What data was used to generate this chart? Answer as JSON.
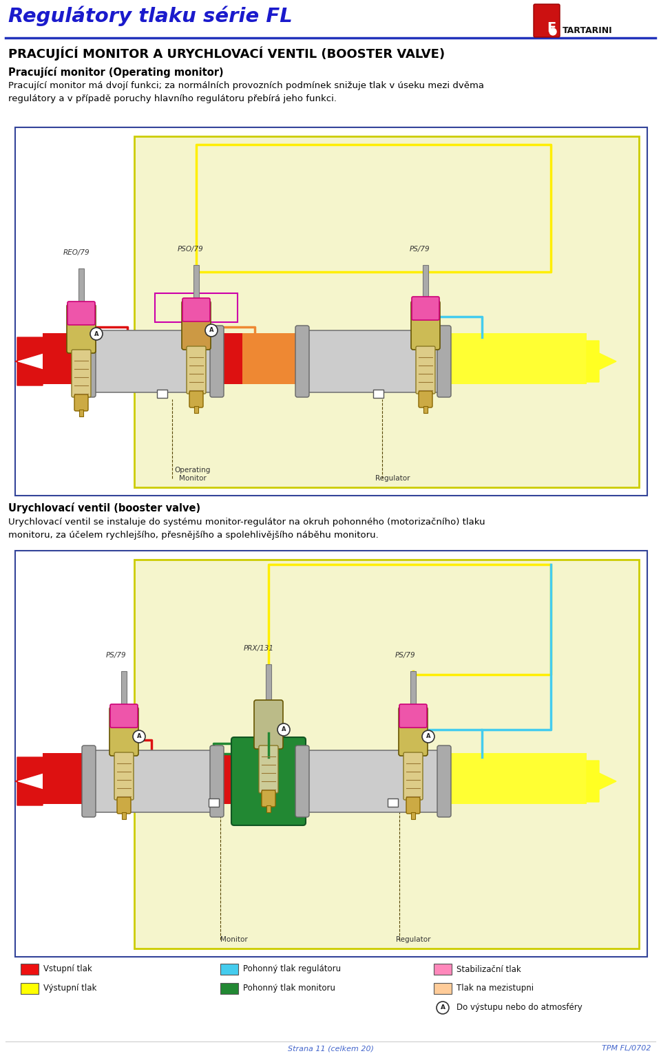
{
  "bg_color": "#ffffff",
  "header_title": "Regulátory tlaku série FL",
  "header_title_color": "#1a1acc",
  "header_title_fontsize": 21,
  "header_line_color": "#2233bb",
  "section1_title": "PRACUJÍCÍ MONITOR A URYCHLOVACÍ VENTIL (BOOSTER VALVE)",
  "section1_title_color": "#000000",
  "section1_title_fontsize": 13,
  "subsection1_title": "Pracující monitor (Operating monitor)",
  "subsection1_title_color": "#000000",
  "subsection1_title_fontsize": 10.5,
  "subsection1_text": "Pracující monitor má dvojí funkci; za normálních provozních podmínek snižuje tlak v úseku mezi dvěma\nregulátory a v případě poruchy hlavního regulátoru přebírá jeho funkci.",
  "subsection1_text_color": "#000000",
  "subsection1_text_fontsize": 9.5,
  "section2_title": "Urychlovací ventil (booster valve)",
  "section2_title_color": "#000000",
  "section2_title_fontsize": 10.5,
  "section2_text": "Urychlovací ventil se instaluje do systému monitor-regulátor na okruh pohonného (motorizačního) tlaku\nmonitoru, za účelem rychlejšího, přesnějšího a spolehlivějšího náběhu monitoru.",
  "section2_text_color": "#000000",
  "section2_text_fontsize": 9.5,
  "legend_items": [
    {
      "color": "#ee1111",
      "label": "Vstupní tlak"
    },
    {
      "color": "#ffff00",
      "label": "Výstupní tlak"
    },
    {
      "color": "#44ccee",
      "label": "Pohonný tlak regulátoru"
    },
    {
      "color": "#228833",
      "label": "Pohonný tlak monitoru"
    },
    {
      "color": "#ff88bb",
      "label": "Stabilizační tlak"
    },
    {
      "color": "#ffcc99",
      "label": "Tlak na mezistupni"
    }
  ],
  "legend_A_label": "Do výstupu nebo do atmosféry",
  "footer_left": "Strana 11 (celkem 20)",
  "footer_right": "TPM FL/0702",
  "footer_color": "#4466cc",
  "footer_fontsize": 8,
  "outer_border_color": "#334499",
  "inner_box_color": "#f5f5cc",
  "inner_box_border": "#cccc00"
}
